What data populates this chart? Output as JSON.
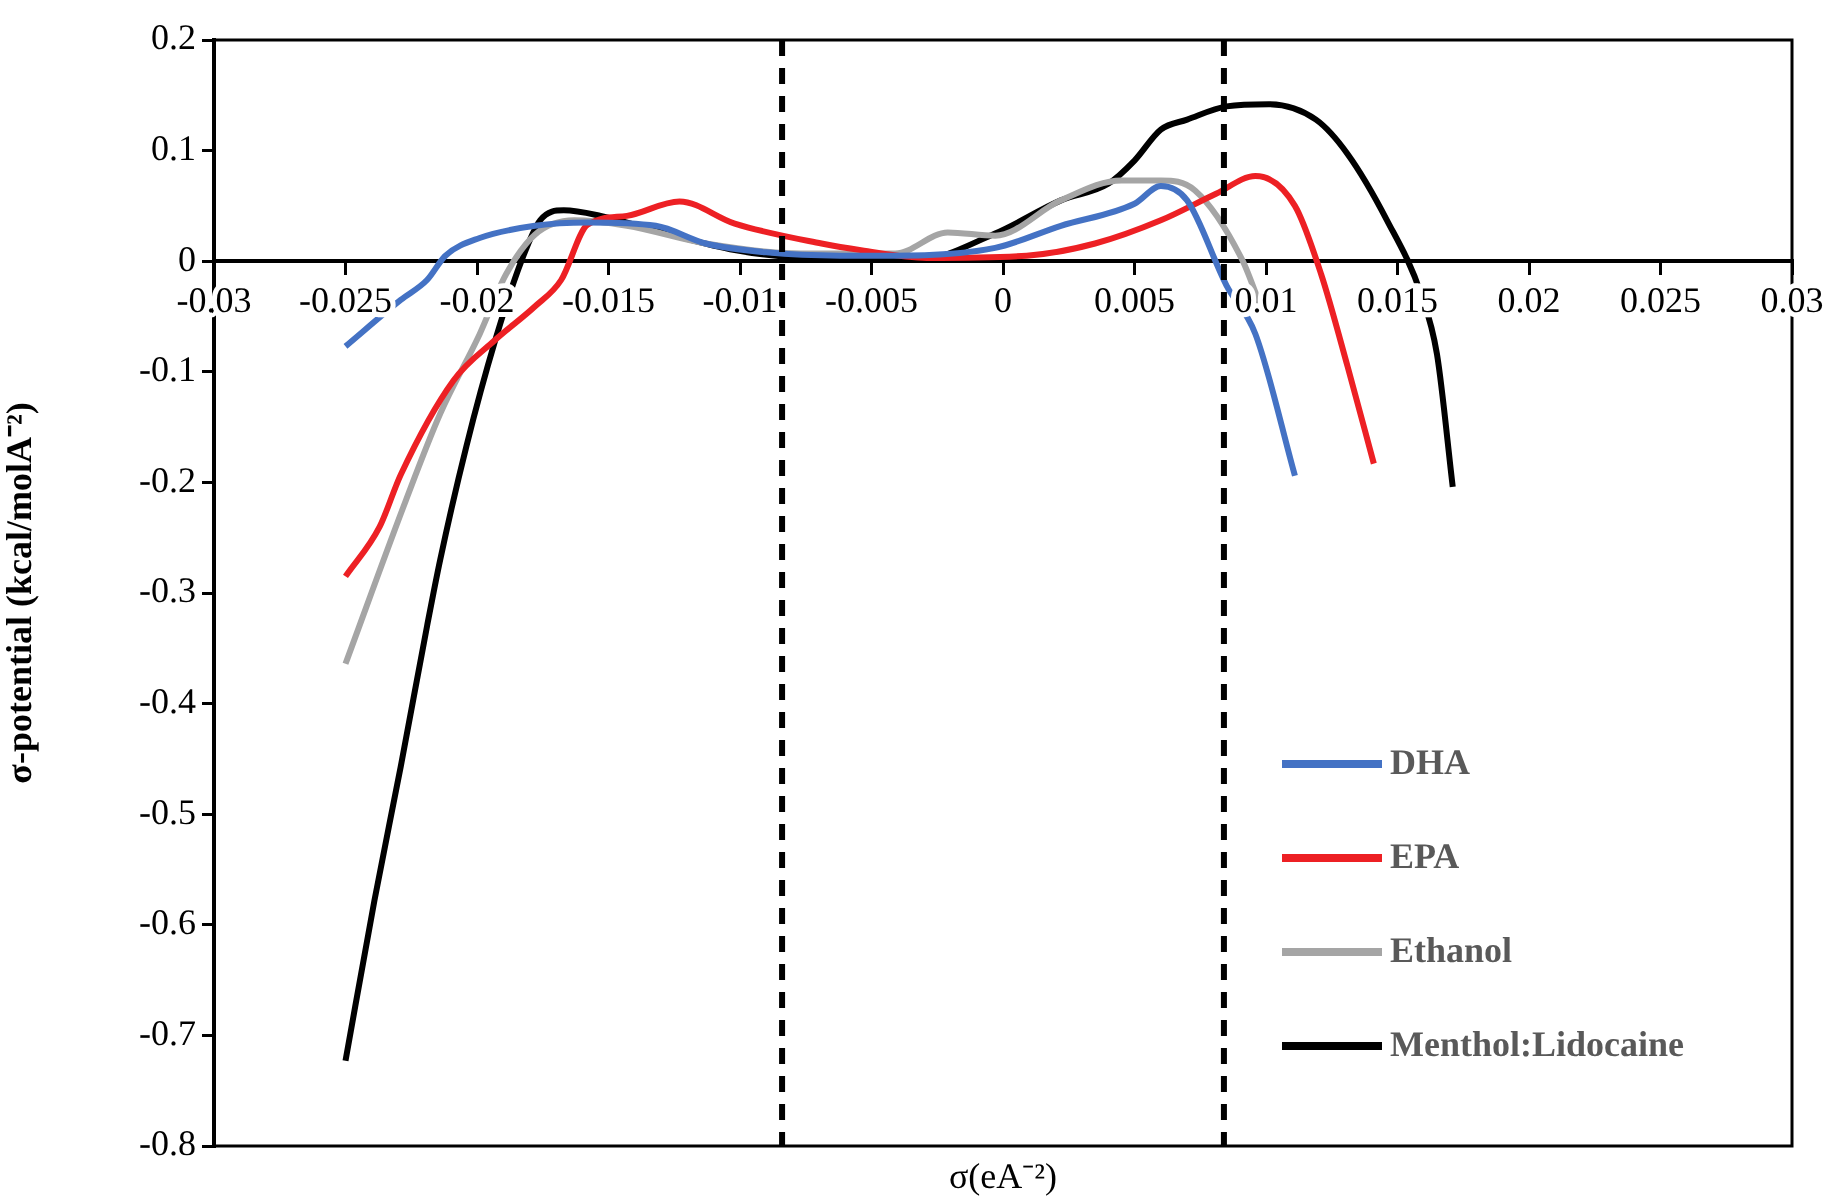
{
  "chart_data": {
    "type": "line",
    "xlabel": "σ(eA⁻²)",
    "ylabel": "σ-potential (kcal/molA⁻²)",
    "xlim": [
      -0.03,
      0.03
    ],
    "xticks": [
      -0.03,
      -0.025,
      -0.02,
      -0.015,
      -0.01,
      -0.005,
      0,
      0.005,
      0.01,
      0.015,
      0.02,
      0.025,
      0.03
    ],
    "ylim": [
      -0.8,
      0.2
    ],
    "yticks": [
      -0.8,
      -0.7,
      -0.6,
      -0.5,
      -0.4,
      -0.3,
      -0.2,
      -0.1,
      0,
      0.1,
      0.2
    ],
    "marker": "none",
    "legend": "bottom right",
    "ref_lines": [
      {
        "axis": "x",
        "value": -0.0084,
        "color": "#000000",
        "line_style": "dashed"
      },
      {
        "axis": "x",
        "value": 0.0084,
        "color": "#000000",
        "line_style": "dashed"
      }
    ],
    "series": [
      {
        "name": "DHA",
        "color": "#4472c4",
        "x": [
          -0.025,
          -0.0229,
          -0.0219,
          -0.0212,
          -0.0199,
          -0.0178,
          -0.0158,
          -0.0132,
          -0.0113,
          -0.009,
          -0.0062,
          -0.0041,
          -0.0003,
          0.0022,
          0.005,
          0.006,
          0.007,
          0.0085,
          0.0096,
          0.0111
        ],
        "values": [
          -0.077,
          -0.035,
          -0.017,
          0.005,
          0.021,
          0.032,
          0.035,
          0.032,
          0.016,
          0.008,
          0.005,
          0.005,
          0.012,
          0.032,
          0.052,
          0.068,
          0.055,
          -0.022,
          -0.066,
          -0.194
        ]
      },
      {
        "name": "EPA",
        "color": "#ed2024",
        "x": [
          -0.025,
          -0.0237,
          -0.0229,
          -0.0209,
          -0.0193,
          -0.0178,
          -0.0168,
          -0.0158,
          -0.0143,
          -0.0123,
          -0.0102,
          -0.0069,
          -0.0054,
          -0.0029,
          0.0009,
          0.0035,
          0.006,
          0.0081,
          0.0096,
          0.0111,
          0.0121,
          0.0131,
          0.0141
        ],
        "values": [
          -0.285,
          -0.24,
          -0.193,
          -0.108,
          -0.071,
          -0.041,
          -0.017,
          0.033,
          0.041,
          0.054,
          0.034,
          0.016,
          0.01,
          0.003,
          0.005,
          0.016,
          0.037,
          0.061,
          0.077,
          0.05,
          -0.012,
          -0.095,
          -0.183
        ]
      },
      {
        "name": "Ethanol",
        "color": "#a5a5a5",
        "x": [
          -0.025,
          -0.0227,
          -0.0214,
          -0.0199,
          -0.0189,
          -0.0178,
          -0.0163,
          -0.0143,
          -0.0113,
          -0.0077,
          -0.0041,
          -0.0021,
          -0.0003,
          0.0022,
          0.0045,
          0.006,
          0.0073,
          0.0091,
          0.0098
        ],
        "values": [
          -0.364,
          -0.216,
          -0.138,
          -0.066,
          -0.012,
          0.024,
          0.037,
          0.032,
          0.016,
          0.007,
          0.007,
          0.026,
          0.023,
          0.055,
          0.073,
          0.073,
          0.064,
          0.001,
          -0.041
        ]
      },
      {
        "name": "Menthol:Lidocaine",
        "color": "#000000",
        "x": [
          -0.025,
          -0.0239,
          -0.0229,
          -0.0219,
          -0.0214,
          -0.0204,
          -0.0193,
          -0.0183,
          -0.0176,
          -0.0167,
          -0.0153,
          -0.0128,
          -0.0102,
          -0.0077,
          -0.0033,
          -0.0003,
          0.0022,
          0.004,
          0.005,
          0.006,
          0.007,
          0.0085,
          0.0101,
          0.0119,
          0.0131,
          0.0146,
          0.0159,
          0.0165,
          0.0171
        ],
        "values": [
          -0.723,
          -0.578,
          -0.457,
          -0.33,
          -0.27,
          -0.167,
          -0.071,
          0.001,
          0.037,
          0.046,
          0.041,
          0.025,
          0.01,
          0.003,
          0.001,
          0.025,
          0.055,
          0.07,
          0.091,
          0.119,
          0.128,
          0.14,
          0.142,
          0.128,
          0.097,
          0.037,
          -0.03,
          -0.084,
          -0.204
        ]
      }
    ]
  }
}
